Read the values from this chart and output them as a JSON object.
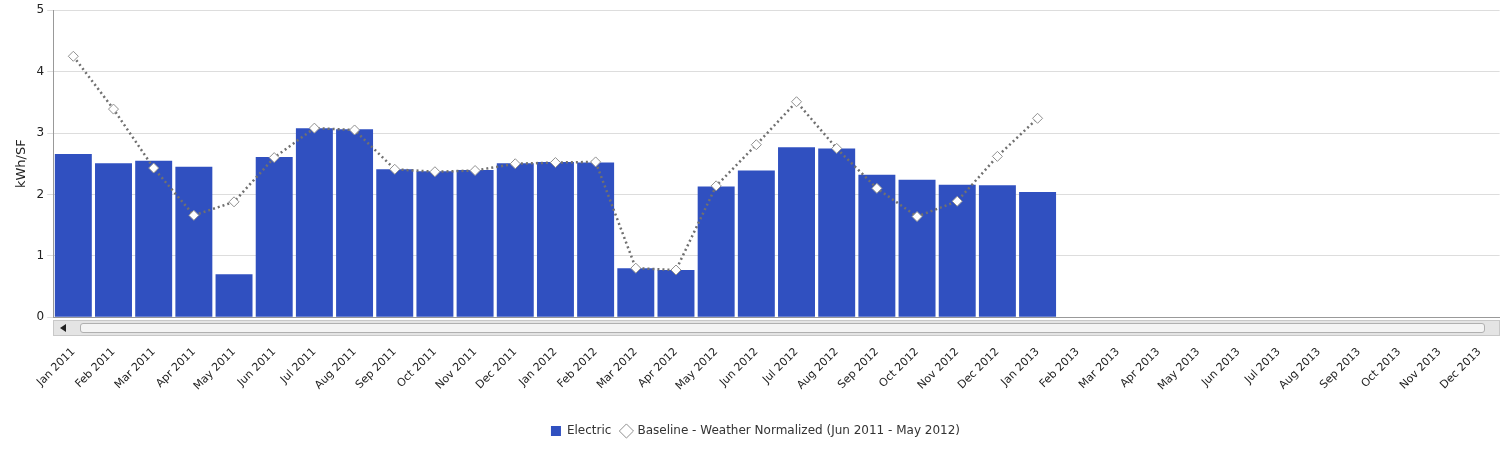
{
  "chart_data": {
    "type": "bar",
    "ylabel": "kWh/SF",
    "categories": [
      "Jan 2011",
      "Feb 2011",
      "Mar 2011",
      "Apr 2011",
      "May 2011",
      "Jun 2011",
      "Jul 2011",
      "Aug 2011",
      "Sep 2011",
      "Oct 2011",
      "Nov 2011",
      "Dec 2011",
      "Jan 2012",
      "Feb 2012",
      "Mar 2012",
      "Apr 2012",
      "May 2012",
      "Jun 2012",
      "Jul 2012",
      "Aug 2012",
      "Sep 2012",
      "Oct 2012",
      "Nov 2012",
      "Dec 2012",
      "Jan 2013",
      "Feb 2013",
      "Mar 2013",
      "Apr 2013",
      "May 2013",
      "Jun 2013",
      "Jul 2013",
      "Aug 2013",
      "Sep 2013",
      "Oct 2013",
      "Nov 2013",
      "Dec 2013"
    ],
    "series": [
      {
        "name": "Electric",
        "color": "#3050c0",
        "values": [
          2.66,
          2.51,
          2.55,
          2.45,
          0.7,
          2.61,
          3.08,
          3.06,
          2.41,
          2.38,
          2.4,
          2.51,
          2.53,
          2.52,
          0.8,
          0.77,
          2.13,
          2.39,
          2.77,
          2.75,
          2.32,
          2.24,
          2.16,
          2.15,
          2.04,
          null,
          null,
          null,
          null,
          null,
          null,
          null,
          null,
          null,
          null,
          null
        ]
      },
      {
        "name": "Baseline - Weather Normalized (Jun 2011 - May 2012)",
        "type": "line",
        "color": "#707070",
        "marker": "diamond",
        "line_style": "dotted",
        "values": [
          4.25,
          3.39,
          2.43,
          1.66,
          1.88,
          2.6,
          3.08,
          3.05,
          2.41,
          2.37,
          2.39,
          2.5,
          2.52,
          2.53,
          0.8,
          0.77,
          2.14,
          2.81,
          3.51,
          2.75,
          2.1,
          1.64,
          1.89,
          2.62,
          3.24,
          null,
          null,
          null,
          null,
          null,
          null,
          null,
          null,
          null,
          null,
          null
        ]
      }
    ],
    "ylim": [
      0,
      5
    ],
    "yticks": [
      0,
      1,
      2,
      3,
      4,
      5
    ],
    "grid": "y",
    "legend": "bottom"
  }
}
